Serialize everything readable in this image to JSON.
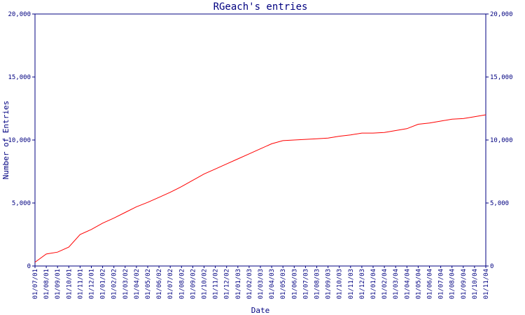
{
  "chart_data": {
    "type": "line",
    "title": "RGeach's entries",
    "x_label": "Date",
    "y_label": "Number of Entries",
    "categories": [
      "01/07/01",
      "01/08/01",
      "01/09/01",
      "01/10/01",
      "01/11/01",
      "01/12/01",
      "01/01/02",
      "01/02/02",
      "01/03/02",
      "01/04/02",
      "01/05/02",
      "01/06/02",
      "01/07/02",
      "01/08/02",
      "01/09/02",
      "01/10/02",
      "01/11/02",
      "01/12/02",
      "01/01/03",
      "01/02/03",
      "01/03/03",
      "01/04/03",
      "01/05/03",
      "01/06/03",
      "01/07/03",
      "01/08/03",
      "01/09/03",
      "01/10/03",
      "01/11/03",
      "01/12/03",
      "01/01/04",
      "01/02/04",
      "01/03/04",
      "01/04/04",
      "01/05/04",
      "01/06/04",
      "01/07/04",
      "01/08/04",
      "01/09/04",
      "01/10/04",
      "01/11/04"
    ],
    "series": [
      {
        "color": "#ff0000",
        "values": [
          300,
          950,
          1100,
          1500,
          2500,
          2900,
          3400,
          3800,
          4250,
          4700,
          5050,
          5450,
          5850,
          6300,
          6800,
          7300,
          7700,
          8100,
          8500,
          8900,
          9300,
          9700,
          9950,
          10000,
          10050,
          10100,
          10150,
          10300,
          10400,
          10550,
          10550,
          10600,
          10750,
          10900,
          11250,
          11350,
          11500,
          11650,
          11700,
          11850,
          12000
        ]
      }
    ],
    "ylim": [
      0,
      20000
    ],
    "yticks": [
      0,
      {
        "value": 5000,
        "label": "5,000"
      },
      {
        "value": 10000,
        "label": "10,000"
      },
      {
        "value": 15000,
        "label": "15,000"
      },
      {
        "value": 20000,
        "label": "20,000"
      }
    ],
    "y2lim": [
      0,
      20000
    ],
    "y2ticks": [
      0,
      {
        "value": 5000,
        "label": "5,000"
      },
      {
        "value": 10000,
        "label": "10,000"
      },
      {
        "value": 15000,
        "label": "15,000"
      },
      {
        "value": 20000,
        "label": "20,000"
      }
    ],
    "axis_color": "#000080"
  }
}
